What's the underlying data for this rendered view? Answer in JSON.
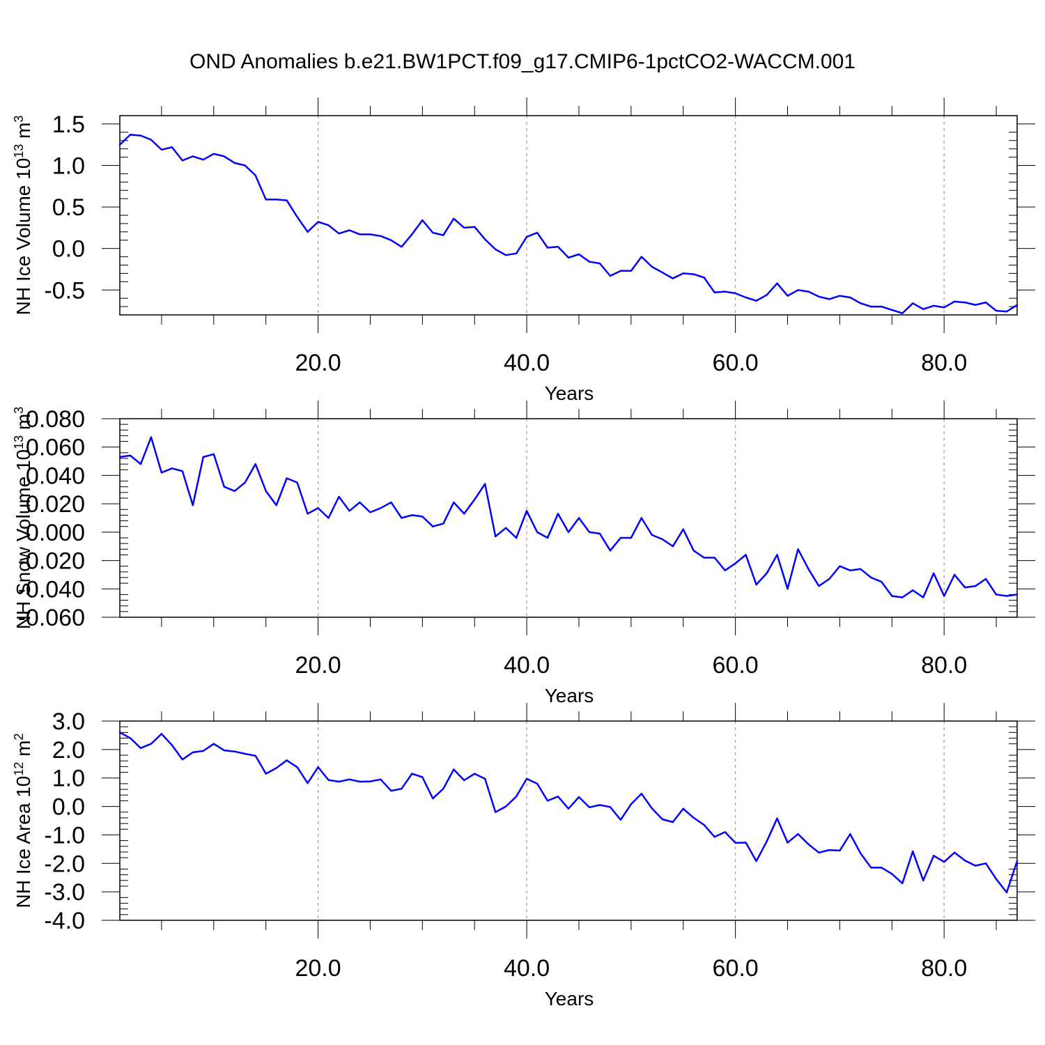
{
  "title": "OND Anomalies b.e21.BW1PCT.f09_g17.CMIP6-1pctCO2-WACCM.001",
  "chart_data": [
    {
      "type": "line",
      "xlabel": "Years",
      "ylabel": "NH Ice Volume 10",
      "ylabel_sup": "13",
      "ylabel_unit": " m",
      "ylabel_unit_sup": "3",
      "ylim": [
        -0.8,
        1.6
      ],
      "xlim": [
        1,
        87
      ],
      "yticks": [
        1.5,
        1.0,
        0.5,
        0.0,
        -0.5
      ],
      "ytick_labels": [
        "1.5",
        "1.0",
        "0.5",
        "0.0",
        "-0.5"
      ],
      "xticks": [
        20,
        40,
        60,
        80
      ],
      "xtick_labels": [
        "20.0",
        "40.0",
        "60.0",
        "80.0"
      ],
      "grid": "vertical dashed at major x ticks",
      "series": [
        {
          "color": "#0000ff",
          "x": [
            1,
            2,
            3,
            4,
            5,
            6,
            7,
            8,
            9,
            10,
            11,
            12,
            13,
            14,
            15,
            16,
            17,
            18,
            19,
            20,
            21,
            22,
            23,
            24,
            25,
            26,
            27,
            28,
            29,
            30,
            31,
            32,
            33,
            34,
            35,
            36,
            37,
            38,
            39,
            40,
            41,
            42,
            43,
            44,
            45,
            46,
            47,
            48,
            49,
            50,
            51,
            52,
            53,
            54,
            55,
            56,
            57,
            58,
            59,
            60,
            61,
            62,
            63,
            64,
            65,
            66,
            67,
            68,
            69,
            70,
            71,
            72,
            73,
            74,
            75,
            76,
            77,
            78,
            79,
            80,
            81,
            82,
            83,
            84,
            85,
            86,
            87
          ],
          "values": [
            1.25,
            1.37,
            1.36,
            1.31,
            1.19,
            1.22,
            1.06,
            1.11,
            1.07,
            1.14,
            1.11,
            1.03,
            1.0,
            0.88,
            0.59,
            0.59,
            0.58,
            0.38,
            0.2,
            0.32,
            0.28,
            0.18,
            0.22,
            0.17,
            0.17,
            0.15,
            0.1,
            0.02,
            0.17,
            0.34,
            0.19,
            0.16,
            0.36,
            0.25,
            0.26,
            0.11,
            -0.01,
            -0.08,
            -0.06,
            0.14,
            0.19,
            0.01,
            0.02,
            -0.11,
            -0.07,
            -0.16,
            -0.18,
            -0.33,
            -0.27,
            -0.27,
            -0.1,
            -0.22,
            -0.29,
            -0.36,
            -0.3,
            -0.31,
            -0.35,
            -0.53,
            -0.52,
            -0.54,
            -0.59,
            -0.63,
            -0.56,
            -0.42,
            -0.57,
            -0.5,
            -0.52,
            -0.58,
            -0.61,
            -0.57,
            -0.59,
            -0.66,
            -0.7,
            -0.7,
            -0.74,
            -0.78,
            -0.66,
            -0.73,
            -0.69,
            -0.71,
            -0.64,
            -0.65,
            -0.68,
            -0.65,
            -0.75,
            -0.76,
            -0.68
          ]
        }
      ]
    },
    {
      "type": "line",
      "xlabel": "Years",
      "ylabel": "NH Snow Volume 10",
      "ylabel_sup": "13",
      "ylabel_unit": " m",
      "ylabel_unit_sup": "3",
      "ylim": [
        -0.06,
        0.08
      ],
      "xlim": [
        1,
        87
      ],
      "yticks": [
        0.08,
        0.06,
        0.04,
        0.02,
        0.0,
        -0.02,
        -0.04,
        -0.06
      ],
      "ytick_labels": [
        "0.080",
        "0.060",
        "0.040",
        "0.020",
        "0.000",
        "-0.020",
        "-0.040",
        "-0.060"
      ],
      "xticks": [
        20,
        40,
        60,
        80
      ],
      "xtick_labels": [
        "20.0",
        "40.0",
        "60.0",
        "80.0"
      ],
      "grid": "vertical dashed at major x ticks",
      "series": [
        {
          "color": "#0000ff",
          "x": [
            1,
            2,
            3,
            4,
            5,
            6,
            7,
            8,
            9,
            10,
            11,
            12,
            13,
            14,
            15,
            16,
            17,
            18,
            19,
            20,
            21,
            22,
            23,
            24,
            25,
            26,
            27,
            28,
            29,
            30,
            31,
            32,
            33,
            34,
            35,
            36,
            37,
            38,
            39,
            40,
            41,
            42,
            43,
            44,
            45,
            46,
            47,
            48,
            49,
            50,
            51,
            52,
            53,
            54,
            55,
            56,
            57,
            58,
            59,
            60,
            61,
            62,
            63,
            64,
            65,
            66,
            67,
            68,
            69,
            70,
            71,
            72,
            73,
            74,
            75,
            76,
            77,
            78,
            79,
            80,
            81,
            82,
            83,
            84,
            85,
            86,
            87
          ],
          "values": [
            0.053,
            0.054,
            0.048,
            0.067,
            0.042,
            0.045,
            0.043,
            0.019,
            0.053,
            0.055,
            0.032,
            0.029,
            0.035,
            0.048,
            0.029,
            0.019,
            0.038,
            0.035,
            0.013,
            0.017,
            0.01,
            0.025,
            0.015,
            0.021,
            0.014,
            0.017,
            0.021,
            0.01,
            0.012,
            0.011,
            0.004,
            0.006,
            0.021,
            0.013,
            0.023,
            0.034,
            -0.003,
            0.003,
            -0.004,
            0.015,
            0.0,
            -0.004,
            0.013,
            0.0,
            0.01,
            0.0,
            -0.001,
            -0.013,
            -0.004,
            -0.004,
            0.01,
            -0.002,
            -0.005,
            -0.01,
            0.002,
            -0.013,
            -0.018,
            -0.018,
            -0.027,
            -0.022,
            -0.016,
            -0.037,
            -0.029,
            -0.016,
            -0.04,
            -0.012,
            -0.026,
            -0.038,
            -0.033,
            -0.024,
            -0.027,
            -0.026,
            -0.032,
            -0.035,
            -0.045,
            -0.046,
            -0.041,
            -0.046,
            -0.029,
            -0.045,
            -0.03,
            -0.039,
            -0.038,
            -0.033,
            -0.044,
            -0.045,
            -0.044
          ]
        }
      ]
    },
    {
      "type": "line",
      "xlabel": "Years",
      "ylabel": "NH Ice Area 10",
      "ylabel_sup": "12",
      "ylabel_unit": " m",
      "ylabel_unit_sup": "2",
      "ylim": [
        -4.0,
        3.0
      ],
      "xlim": [
        1,
        87
      ],
      "yticks": [
        3.0,
        2.0,
        1.0,
        0.0,
        -1.0,
        -2.0,
        -3.0,
        -4.0
      ],
      "ytick_labels": [
        "3.0",
        "2.0",
        "1.0",
        "0.0",
        "-1.0",
        "-2.0",
        "-3.0",
        "-4.0"
      ],
      "xticks": [
        20,
        40,
        60,
        80
      ],
      "xtick_labels": [
        "20.0",
        "40.0",
        "60.0",
        "80.0"
      ],
      "grid": "vertical dashed at major x ticks",
      "series": [
        {
          "color": "#0000ff",
          "x": [
            1,
            2,
            3,
            4,
            5,
            6,
            7,
            8,
            9,
            10,
            11,
            12,
            13,
            14,
            15,
            16,
            17,
            18,
            19,
            20,
            21,
            22,
            23,
            24,
            25,
            26,
            27,
            28,
            29,
            30,
            31,
            32,
            33,
            34,
            35,
            36,
            37,
            38,
            39,
            40,
            41,
            42,
            43,
            44,
            45,
            46,
            47,
            48,
            49,
            50,
            51,
            52,
            53,
            54,
            55,
            56,
            57,
            58,
            59,
            60,
            61,
            62,
            63,
            64,
            65,
            66,
            67,
            68,
            69,
            70,
            71,
            72,
            73,
            74,
            75,
            76,
            77,
            78,
            79,
            80,
            81,
            82,
            83,
            84,
            85,
            86,
            87
          ],
          "values": [
            2.6,
            2.4,
            2.05,
            2.2,
            2.55,
            2.15,
            1.65,
            1.9,
            1.95,
            2.2,
            1.97,
            1.93,
            1.85,
            1.78,
            1.15,
            1.35,
            1.62,
            1.38,
            0.82,
            1.38,
            0.93,
            0.87,
            0.95,
            0.87,
            0.88,
            0.95,
            0.55,
            0.62,
            1.15,
            1.03,
            0.28,
            0.62,
            1.3,
            0.92,
            1.15,
            0.97,
            -0.2,
            0.0,
            0.35,
            0.97,
            0.8,
            0.2,
            0.35,
            -0.08,
            0.33,
            -0.03,
            0.05,
            -0.02,
            -0.47,
            0.08,
            0.45,
            -0.07,
            -0.45,
            -0.55,
            -0.08,
            -0.4,
            -0.65,
            -1.07,
            -0.9,
            -1.28,
            -1.27,
            -1.92,
            -1.23,
            -0.42,
            -1.27,
            -0.97,
            -1.33,
            -1.62,
            -1.53,
            -1.55,
            -0.97,
            -1.65,
            -2.15,
            -2.15,
            -2.37,
            -2.7,
            -1.58,
            -2.6,
            -1.73,
            -1.95,
            -1.62,
            -1.9,
            -2.08,
            -2.0,
            -2.55,
            -3.02,
            -1.92
          ]
        }
      ]
    }
  ]
}
